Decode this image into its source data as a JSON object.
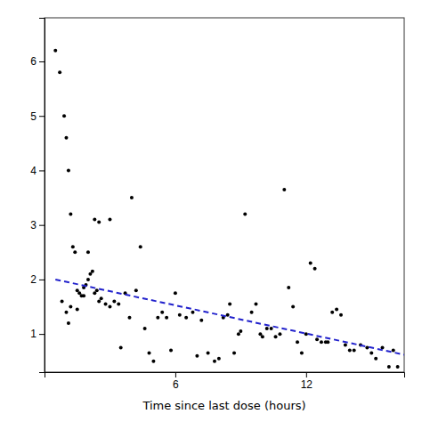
{
  "chart_data": {
    "type": "scatter",
    "xlabel": "Time since last dose (hours)",
    "xlim": [
      0,
      16.5
    ],
    "ylim": [
      0.3,
      6.8
    ],
    "xticks": [
      6,
      12
    ],
    "yticks": [
      1,
      2,
      3,
      4,
      5,
      6
    ],
    "series": [
      {
        "type": "scatter",
        "marker": "circle",
        "color": "#000000",
        "x": [
          0.5,
          0.7,
          0.9,
          1.0,
          1.1,
          1.2,
          1.3,
          1.4,
          1.5,
          1.6,
          1.7,
          1.8,
          1.9,
          2.0,
          2.1,
          2.2,
          2.3,
          2.4,
          2.5,
          2.6,
          2.8,
          3.0,
          3.2,
          3.4,
          3.5,
          3.7,
          3.9,
          4.0,
          4.2,
          4.4,
          4.6,
          4.8,
          5.0,
          5.2,
          5.4,
          5.6,
          5.8,
          6.0,
          6.2,
          6.5,
          6.8,
          7.0,
          7.2,
          7.5,
          7.8,
          8.0,
          8.2,
          8.4,
          8.5,
          8.7,
          8.9,
          9.0,
          9.2,
          9.5,
          9.7,
          9.9,
          10.0,
          10.2,
          10.4,
          10.6,
          10.8,
          11.0,
          11.2,
          11.4,
          11.6,
          11.8,
          12.0,
          12.2,
          12.4,
          12.5,
          12.7,
          12.9,
          13.0,
          13.2,
          13.4,
          13.6,
          13.8,
          14.0,
          14.2,
          14.5,
          14.8,
          15.0,
          15.2,
          15.5,
          15.8,
          16.0,
          16.2,
          1.0,
          1.2,
          1.5,
          1.8,
          2.0,
          2.3,
          2.5,
          0.8,
          1.1,
          3.0
        ],
        "values": [
          6.2,
          5.8,
          5.0,
          4.6,
          4.0,
          3.2,
          2.6,
          2.5,
          1.8,
          1.75,
          1.7,
          1.85,
          1.9,
          2.0,
          2.1,
          2.15,
          1.75,
          1.8,
          1.6,
          1.65,
          1.55,
          1.5,
          1.6,
          1.55,
          0.75,
          1.75,
          1.3,
          3.5,
          1.8,
          2.6,
          1.1,
          0.65,
          0.5,
          1.3,
          1.4,
          1.3,
          0.7,
          1.75,
          1.35,
          1.3,
          1.4,
          0.6,
          1.25,
          0.65,
          0.5,
          0.55,
          1.3,
          1.35,
          1.55,
          0.65,
          1.0,
          1.05,
          3.2,
          1.4,
          1.55,
          1.0,
          0.95,
          1.1,
          1.1,
          0.95,
          1.0,
          3.65,
          1.85,
          1.5,
          0.85,
          0.65,
          1.0,
          2.3,
          2.2,
          0.9,
          0.85,
          0.85,
          0.85,
          1.4,
          1.45,
          1.35,
          0.8,
          0.7,
          0.7,
          0.8,
          0.75,
          0.65,
          0.55,
          0.75,
          0.4,
          0.7,
          0.4,
          1.4,
          1.5,
          1.45,
          1.7,
          2.5,
          3.1,
          3.05,
          1.6,
          1.2,
          3.1
        ]
      },
      {
        "type": "line",
        "line_style": "dashed",
        "color": "#2222cc",
        "x": [
          0.5,
          16.5
        ],
        "values": [
          2.0,
          0.62
        ]
      }
    ]
  }
}
